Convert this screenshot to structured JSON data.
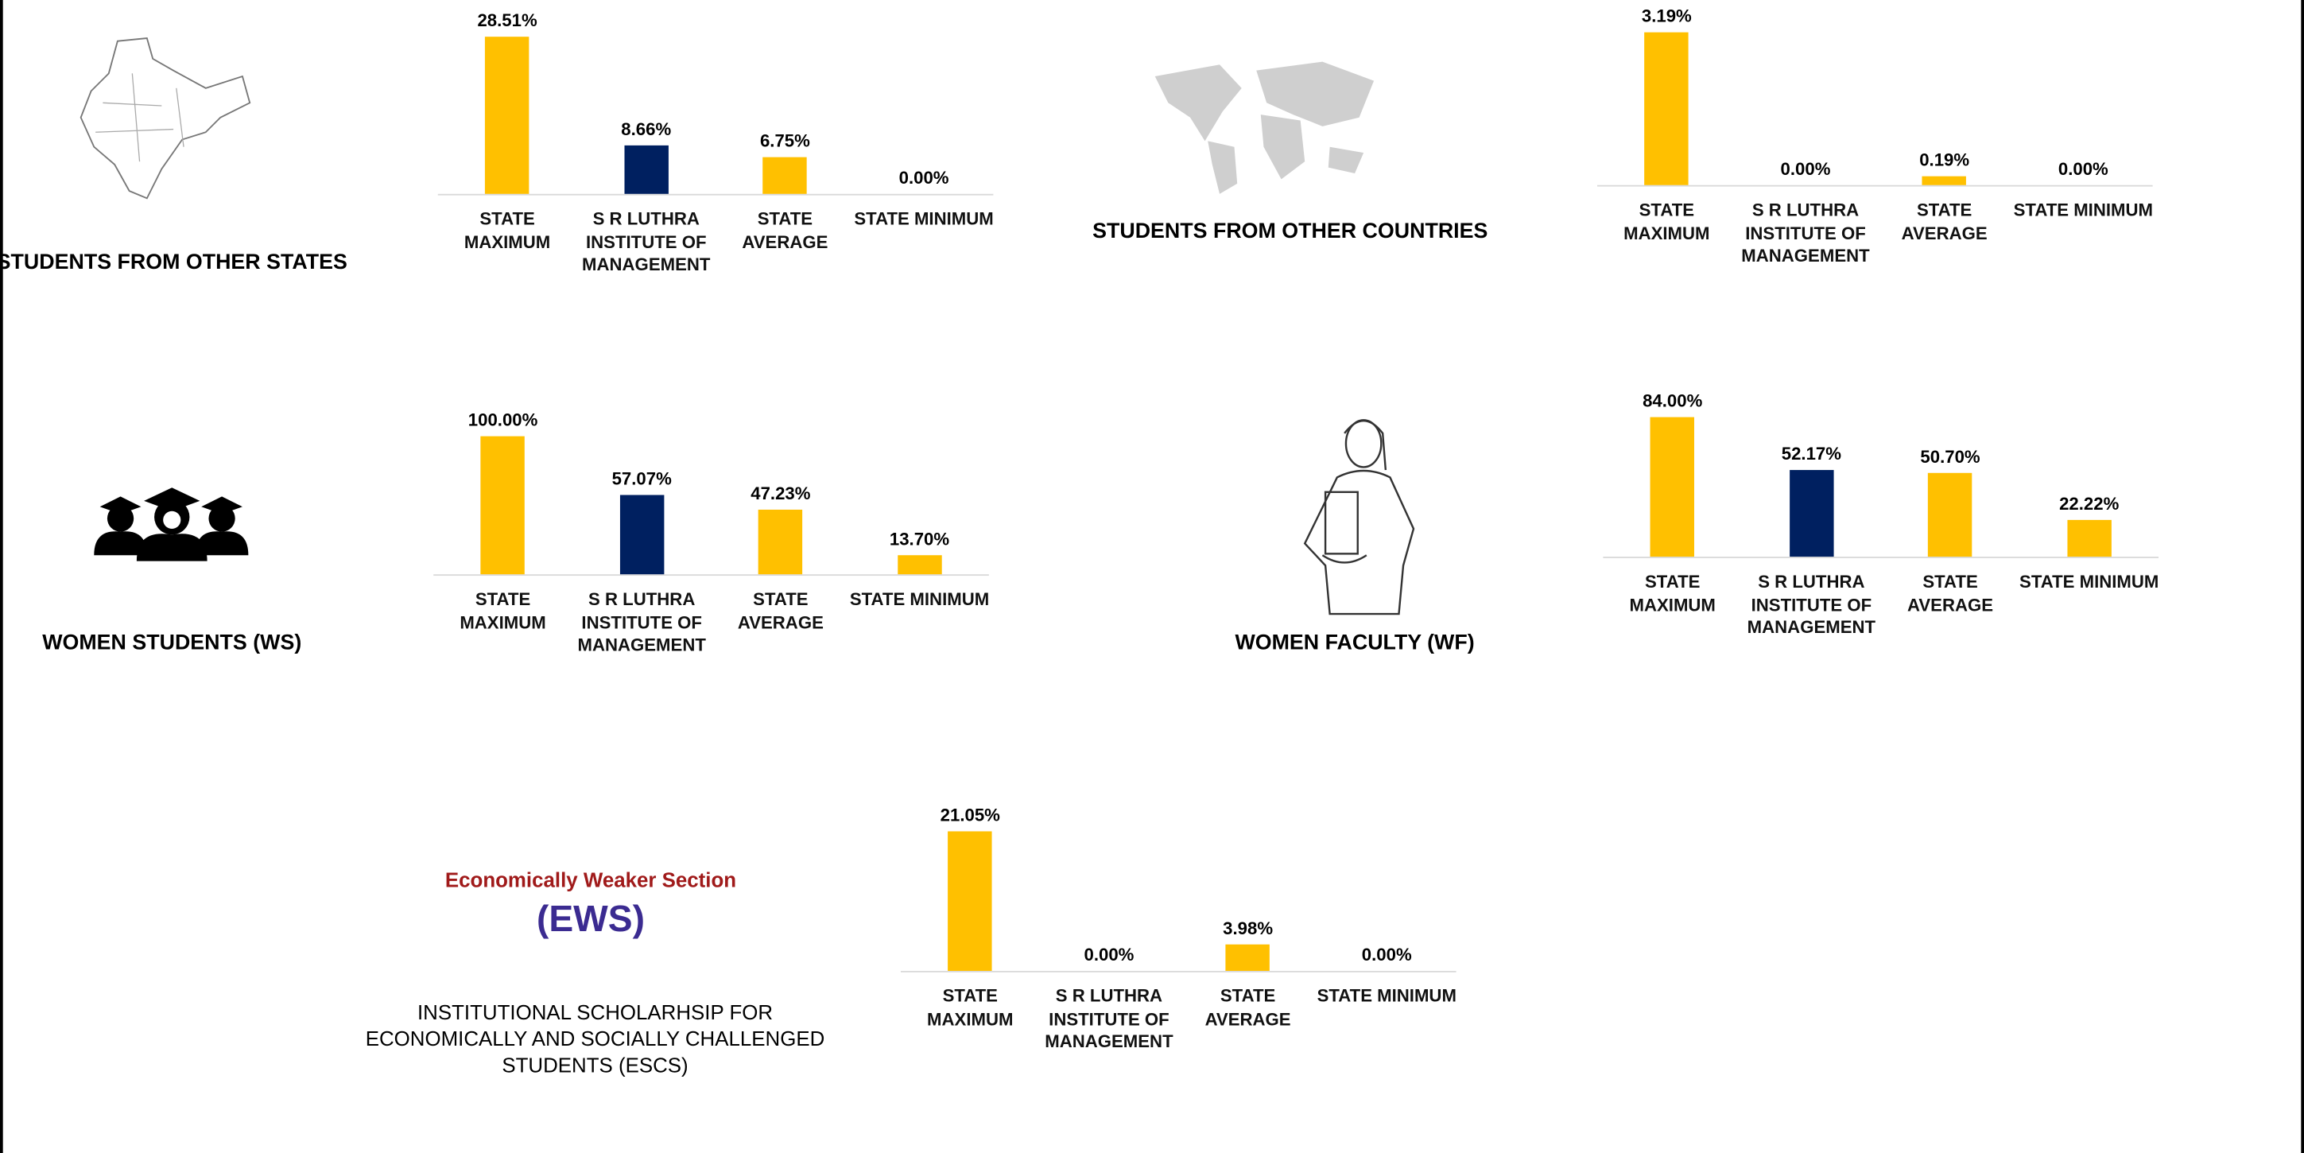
{
  "chart_data": [
    {
      "type": "bar",
      "title": "STUDENTS FROM OTHER STATES",
      "categories": [
        "STATE MAXIMUM",
        "S R LUTHRA INSTITUTE OF MANAGEMENT",
        "STATE AVERAGE",
        "STATE MINIMUM"
      ],
      "values": [
        28.51,
        8.66,
        6.75,
        0
      ],
      "value_labels": [
        "28.51%",
        "8.66%",
        "6.75%",
        "0.00%"
      ],
      "colors": [
        "#FFC000",
        "#002060",
        "#FFC000",
        "#FFC000"
      ]
    },
    {
      "type": "bar",
      "title": "STUDENTS FROM OTHER COUNTRIES",
      "categories": [
        "STATE MAXIMUM",
        "S R LUTHRA INSTITUTE OF MANAGEMENT",
        "STATE AVERAGE",
        "STATE MINIMUM"
      ],
      "values": [
        3.19,
        0,
        0.19,
        0
      ],
      "value_labels": [
        "3.19%",
        "0.00%",
        "0.19%",
        "0.00%"
      ],
      "colors": [
        "#FFC000",
        "#002060",
        "#FFC000",
        "#FFC000"
      ]
    },
    {
      "type": "bar",
      "title": "WOMEN STUDENTS (WS)",
      "categories": [
        "STATE MAXIMUM",
        "S R LUTHRA INSTITUTE OF MANAGEMENT",
        "STATE AVERAGE",
        "STATE MINIMUM"
      ],
      "values": [
        100,
        57.07,
        47.23,
        13.7
      ],
      "value_labels": [
        "100.00%",
        "57.07%",
        "47.23%",
        "13.70%"
      ],
      "colors": [
        "#FFC000",
        "#002060",
        "#FFC000",
        "#FFC000"
      ]
    },
    {
      "type": "bar",
      "title": "WOMEN FACULTY (WF)",
      "categories": [
        "STATE MAXIMUM",
        "S R LUTHRA INSTITUTE OF MANAGEMENT",
        "STATE AVERAGE",
        "STATE MINIMUM"
      ],
      "values": [
        84,
        52.17,
        50.7,
        22.22
      ],
      "value_labels": [
        "84.00%",
        "52.17%",
        "50.70%",
        "22.22%"
      ],
      "colors": [
        "#FFC000",
        "#002060",
        "#FFC000",
        "#FFC000"
      ]
    },
    {
      "type": "bar",
      "title": "INSTITUTIONAL SCHOLARHSIP FOR ECONOMICALLY AND SOCIALLY CHALLENGED STUDENTS (ESCS)",
      "categories": [
        "STATE MAXIMUM",
        "S R LUTHRA INSTITUTE OF MANAGEMENT",
        "STATE AVERAGE",
        "STATE MINIMUM"
      ],
      "values": [
        21.05,
        0,
        3.98,
        0
      ],
      "value_labels": [
        "21.05%",
        "0.00%",
        "3.98%",
        "0.00%"
      ],
      "colors": [
        "#FFC000",
        "#002060",
        "#FFC000",
        "#FFC000"
      ]
    }
  ],
  "ews_logo": {
    "line1": "Economically Weaker Section",
    "line2": "(EWS)"
  }
}
